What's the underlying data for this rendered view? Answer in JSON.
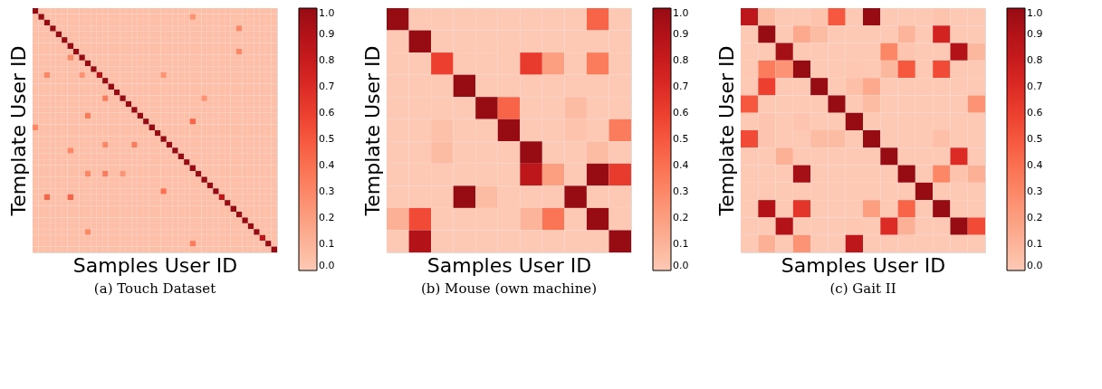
{
  "chart_data": [
    {
      "type": "heatmap",
      "title": "(a) Touch Dataset",
      "xlabel": "Samples User ID",
      "ylabel": "Template User ID",
      "tick_labels": false,
      "categories": [
        null,
        null,
        null,
        null,
        null,
        null,
        null,
        null,
        null,
        null,
        null,
        null,
        null,
        null,
        null,
        null,
        null,
        null,
        null,
        null,
        null,
        null,
        null,
        null,
        null,
        null,
        null,
        null,
        null,
        null,
        null,
        null,
        null,
        null,
        null,
        null,
        null,
        null,
        null,
        null,
        null,
        null
      ],
      "y_categories": [
        null,
        null,
        null,
        null,
        null,
        null,
        null,
        null,
        null,
        null,
        null,
        null,
        null,
        null,
        null,
        null,
        null,
        null,
        null,
        null,
        null,
        null,
        null,
        null,
        null,
        null,
        null,
        null,
        null,
        null,
        null,
        null,
        null,
        null,
        null,
        null,
        null,
        null,
        null,
        null,
        null,
        null
      ],
      "clim": [
        0,
        1
      ],
      "cticks": [
        {
          "value": 0,
          "label": "0.0"
        },
        {
          "value": 0.1,
          "label": "0.1"
        },
        {
          "value": 0.2,
          "label": "0.2"
        },
        {
          "value": 0.3,
          "label": "0.3"
        },
        {
          "value": 0.4,
          "label": "0.4"
        },
        {
          "value": 0.5,
          "label": "0.5"
        },
        {
          "value": 0.6,
          "label": "0.6"
        },
        {
          "value": 0.7,
          "label": "0.7"
        },
        {
          "value": 0.8,
          "label": "0.8"
        },
        {
          "value": 0.9,
          "label": "0.9"
        },
        {
          "value": 1,
          "label": "1.0"
        }
      ],
      "cells": [
        [
          1,
          0.05,
          0.05,
          0.05,
          0.05,
          0.05,
          0.05,
          0.05,
          0.05,
          0.05,
          0.05,
          0.05,
          0.05,
          0.05,
          0.05,
          0.05,
          0.05,
          0.05,
          0.05,
          0.05,
          0.05,
          0.05,
          0.05,
          0.05,
          0.05,
          0.05,
          0.05,
          0.05,
          0.05,
          0.05,
          0.05,
          0.05,
          0.05,
          0.05,
          0.05,
          0.05,
          0.05,
          0.05,
          0.05,
          0.05,
          0.05,
          0.05
        ],
        [
          0.05,
          1,
          0.05,
          0.05,
          0.05,
          0.05,
          0.05,
          0.05,
          0.05,
          0.05,
          0.05,
          0.05,
          0.05,
          0.05,
          0.05,
          0.05,
          0.05,
          0.05,
          0.05,
          0.05,
          0.05,
          0.05,
          0.05,
          0.05,
          0.05,
          0.05,
          0.05,
          0.25,
          0.05,
          0.05,
          0.05,
          0.05,
          0.05,
          0.05,
          0.05,
          0.05,
          0.05,
          0.05,
          0.05,
          0.05,
          0.05,
          0.05
        ],
        [
          0.05,
          0.05,
          1,
          0.05,
          0.05,
          0.05,
          0.05,
          0.05,
          0.05,
          0.05,
          0.05,
          0.05,
          0.05,
          0.05,
          0.05,
          0.05,
          0.05,
          0.05,
          0.05,
          0.05,
          0.05,
          0.05,
          0.05,
          0.05,
          0.05,
          0.05,
          0.05,
          0.05,
          0.05,
          0.05,
          0.05,
          0.05,
          0.05,
          0.05,
          0.05,
          0.05,
          0.05,
          0.05,
          0.05,
          0.05,
          0.05,
          0.05
        ],
        [
          0.05,
          0.05,
          0.05,
          1,
          0.05,
          0.05,
          0.05,
          0.05,
          0.05,
          0.05,
          0.05,
          0.05,
          0.05,
          0.05,
          0.05,
          0.05,
          0.05,
          0.05,
          0.05,
          0.05,
          0.05,
          0.05,
          0.05,
          0.05,
          0.05,
          0.05,
          0.05,
          0.05,
          0.05,
          0.05,
          0.05,
          0.05,
          0.05,
          0.05,
          0.05,
          0.3,
          0.05,
          0.05,
          0.05,
          0.05,
          0.05,
          0.05
        ],
        [
          0.05,
          0.05,
          0.05,
          0.05,
          1,
          0.05,
          0.05,
          0.05,
          0.05,
          0.05,
          0.05,
          0.05,
          0.05,
          0.05,
          0.05,
          0.05,
          0.05,
          0.05,
          0.05,
          0.05,
          0.05,
          0.05,
          0.05,
          0.05,
          0.05,
          0.05,
          0.05,
          0.05,
          0.05,
          0.05,
          0.05,
          0.05,
          0.05,
          0.05,
          0.05,
          0.05,
          0.05,
          0.05,
          0.05,
          0.05,
          0.05,
          0.05
        ],
        [
          0.05,
          0.05,
          0.05,
          0.05,
          0.05,
          1,
          0.05,
          0.05,
          0.05,
          0.05,
          0.05,
          0.05,
          0.05,
          0.05,
          0.05,
          0.05,
          0.05,
          0.05,
          0.05,
          0.05,
          0.05,
          0.05,
          0.05,
          0.05,
          0.05,
          0.05,
          0.05,
          0.05,
          0.05,
          0.05,
          0.05,
          0.05,
          0.05,
          0.05,
          0.05,
          0.05,
          0.05,
          0.05,
          0.05,
          0.05,
          0.05,
          0.05
        ],
        [
          0.05,
          0.05,
          0.05,
          0.05,
          0.05,
          0.05,
          1,
          0.05,
          0.05,
          0.05,
          0.05,
          0.05,
          0.05,
          0.05,
          0.05,
          0.05,
          0.05,
          0.05,
          0.05,
          0.05,
          0.05,
          0.05,
          0.05,
          0.05,
          0.05,
          0.05,
          0.05,
          0.05,
          0.05,
          0.05,
          0.05,
          0.05,
          0.05,
          0.05,
          0.05,
          0.05,
          0.05,
          0.05,
          0.05,
          0.05,
          0.05,
          0.05
        ],
        [
          0.05,
          0.05,
          0.05,
          0.05,
          0.05,
          0.05,
          0.05,
          1,
          0.05,
          0.05,
          0.05,
          0.05,
          0.05,
          0.05,
          0.05,
          0.05,
          0.05,
          0.05,
          0.05,
          0.05,
          0.05,
          0.05,
          0.05,
          0.05,
          0.05,
          0.05,
          0.05,
          0.05,
          0.05,
          0.05,
          0.05,
          0.05,
          0.05,
          0.05,
          0.05,
          0.3,
          0.05,
          0.05,
          0.05,
          0.05,
          0.05,
          0.05
        ],
        [
          0.05,
          0.05,
          0.05,
          0.05,
          0.05,
          0.05,
          0.3,
          0.05,
          1,
          0.05,
          0.05,
          0.05,
          0.05,
          0.05,
          0.05,
          0.05,
          0.05,
          0.05,
          0.05,
          0.05,
          0.05,
          0.05,
          0.05,
          0.05,
          0.05,
          0.05,
          0.05,
          0.05,
          0.05,
          0.05,
          0.05,
          0.05,
          0.05,
          0.05,
          0.05,
          0.05,
          0.05,
          0.05,
          0.05,
          0.05,
          0.05,
          0.05
        ],
        [
          0.05,
          0.05,
          0.05,
          0.05,
          0.05,
          0.05,
          0.05,
          0.05,
          0.05,
          1,
          0.05,
          0.05,
          0.05,
          0.05,
          0.05,
          0.05,
          0.05,
          0.05,
          0.05,
          0.05,
          0.05,
          0.05,
          0.05,
          0.05,
          0.05,
          0.05,
          0.05,
          0.05,
          0.05,
          0.05,
          0.05,
          0.05,
          0.05,
          0.05,
          0.05,
          0.05,
          0.05,
          0.05,
          0.05,
          0.05,
          0.05,
          0.05
        ],
        [
          0.05,
          0.05,
          0.05,
          0.05,
          0.05,
          0.05,
          0.05,
          0.05,
          0.05,
          0.05,
          1,
          0.05,
          0.05,
          0.05,
          0.05,
          0.05,
          0.05,
          0.05,
          0.05,
          0.05,
          0.05,
          0.05,
          0.05,
          0.05,
          0.05,
          0.05,
          0.05,
          0.05,
          0.05,
          0.05,
          0.05,
          0.05,
          0.05,
          0.05,
          0.05,
          0.05,
          0.05,
          0.05,
          0.05,
          0.05,
          0.05,
          0.05
        ],
        [
          0.05,
          0.05,
          0.3,
          0.05,
          0.05,
          0.05,
          0.05,
          0.05,
          0.25,
          0.05,
          0.05,
          0.9,
          0.05,
          0.05,
          0.05,
          0.05,
          0.05,
          0.05,
          0.05,
          0.05,
          0.05,
          0.05,
          0.25,
          0.05,
          0.05,
          0.05,
          0.05,
          0.05,
          0.05,
          0.05,
          0.05,
          0.05,
          0.05,
          0.05,
          0.05,
          0.05,
          0.05,
          0.05,
          0.05,
          0.05,
          0.05,
          0.05
        ],
        [
          0.05,
          0.05,
          0.05,
          0.05,
          0.05,
          0.05,
          0.05,
          0.05,
          0.05,
          0.05,
          0.05,
          0.05,
          1,
          0.05,
          0.05,
          0.05,
          0.05,
          0.05,
          0.05,
          0.05,
          0.05,
          0.05,
          0.05,
          0.05,
          0.05,
          0.05,
          0.05,
          0.05,
          0.05,
          0.05,
          0.05,
          0.05,
          0.05,
          0.05,
          0.05,
          0.05,
          0.05,
          0.05,
          0.05,
          0.05,
          0.05,
          0.05
        ],
        [
          0.05,
          0.05,
          0.05,
          0.05,
          0.05,
          0.05,
          0.05,
          0.05,
          0.05,
          0.05,
          0.05,
          0.05,
          0.05,
          1,
          0.05,
          0.05,
          0.05,
          0.05,
          0.05,
          0.05,
          0.05,
          0.05,
          0.05,
          0.05,
          0.05,
          0.05,
          0.05,
          0.05,
          0.05,
          0.05,
          0.05,
          0.05,
          0.05,
          0.05,
          0.05,
          0.05,
          0.05,
          0.05,
          0.05,
          0.05,
          0.05,
          0.05
        ],
        [
          0.05,
          0.05,
          0.05,
          0.05,
          0.05,
          0.05,
          0.05,
          0.05,
          0.05,
          0.05,
          0.05,
          0.05,
          0.05,
          0.05,
          1,
          0.05,
          0.05,
          0.05,
          0.05,
          0.05,
          0.05,
          0.05,
          0.05,
          0.05,
          0.05,
          0.05,
          0.05,
          0.05,
          0.05,
          0.05,
          0.05,
          0.05,
          0.05,
          0.05,
          0.05,
          0.05,
          0.05,
          0.05,
          0.05,
          0.05,
          0.05,
          0.05
        ],
        [
          0.05,
          0.05,
          0.05,
          0.05,
          0.05,
          0.05,
          0.05,
          0.05,
          0.05,
          0.05,
          0.05,
          0.05,
          0.35,
          0.05,
          0.05,
          1,
          0.05,
          0.05,
          0.05,
          0.05,
          0.05,
          0.05,
          0.05,
          0.05,
          0.05,
          0.05,
          0.05,
          0.05,
          0.05,
          0.25,
          0.05,
          0.05,
          0.05,
          0.05,
          0.05,
          0.05,
          0.05,
          0.05,
          0.05,
          0.05,
          0.05,
          0.05
        ],
        [
          0.05,
          0.05,
          0.05,
          0.05,
          0.05,
          0.05,
          0.05,
          0.05,
          0.05,
          0.05,
          0.05,
          0.05,
          0.05,
          0.05,
          0.05,
          0.05,
          1,
          0.05,
          0.05,
          0.05,
          0.05,
          0.05,
          0.05,
          0.05,
          0.05,
          0.05,
          0.05,
          0.05,
          0.05,
          0.05,
          0.05,
          0.05,
          0.05,
          0.05,
          0.05,
          0.05,
          0.05,
          0.05,
          0.05,
          0.05,
          0.05,
          0.05
        ],
        [
          0.05,
          0.05,
          0.05,
          0.05,
          0.05,
          0.05,
          0.05,
          0.05,
          0.05,
          0.05,
          0.05,
          0.05,
          0.05,
          0.05,
          0.05,
          0.05,
          0.05,
          1,
          0.05,
          0.05,
          0.05,
          0.05,
          0.05,
          0.05,
          0.05,
          0.05,
          0.05,
          0.05,
          0.05,
          0.05,
          0.05,
          0.05,
          0.05,
          0.05,
          0.05,
          0.05,
          0.05,
          0.05,
          0.05,
          0.05,
          0.05,
          0.05
        ],
        [
          0.05,
          0.05,
          0.05,
          0.05,
          0.05,
          0.05,
          0.05,
          0.05,
          0.05,
          0.35,
          0.05,
          0.05,
          0.05,
          0.05,
          0.05,
          0.05,
          0.05,
          0.05,
          1,
          0.05,
          0.05,
          0.05,
          0.05,
          0.05,
          0.05,
          0.05,
          0.05,
          0.05,
          0.05,
          0.05,
          0.05,
          0.05,
          0.05,
          0.05,
          0.05,
          0.05,
          0.05,
          0.05,
          0.05,
          0.05,
          0.05,
          0.05
        ],
        [
          0.05,
          0.05,
          0.05,
          0.05,
          0.05,
          0.05,
          0.05,
          0.05,
          0.05,
          0.05,
          0.05,
          0.05,
          0.05,
          0.05,
          0.05,
          0.05,
          0.05,
          0.05,
          0.05,
          1,
          0.05,
          0.05,
          0.05,
          0.05,
          0.05,
          0.05,
          0.05,
          0.45,
          0.05,
          0.05,
          0.05,
          0.05,
          0.05,
          0.05,
          0.05,
          0.05,
          0.05,
          0.05,
          0.05,
          0.05,
          0.05,
          0.05
        ],
        [
          0.3,
          0.05,
          0.05,
          0.05,
          0.05,
          0.05,
          0.05,
          0.05,
          0.05,
          0.05,
          0.05,
          0.05,
          0.05,
          0.05,
          0.05,
          0.05,
          0.05,
          0.05,
          0.05,
          0.05,
          1,
          0.05,
          0.05,
          0.05,
          0.05,
          0.05,
          0.05,
          0.05,
          0.05,
          0.05,
          0.05,
          0.05,
          0.05,
          0.05,
          0.05,
          0.05,
          0.05,
          0.05,
          0.05,
          0.05,
          0.05,
          0.05
        ],
        [
          0.05,
          0.05,
          0.05,
          0.05,
          0.05,
          0.05,
          0.05,
          0.05,
          0.05,
          0.05,
          0.05,
          0.05,
          0.05,
          0.05,
          0.05,
          0.05,
          0.05,
          0.05,
          0.05,
          0.05,
          0.05,
          1,
          0.05,
          0.05,
          0.05,
          0.05,
          0.05,
          0.05,
          0.05,
          0.05,
          0.05,
          0.05,
          0.05,
          0.05,
          0.05,
          0.05,
          0.05,
          0.05,
          0.05,
          0.05,
          0.05,
          0.05
        ],
        [
          0.05,
          0.05,
          0.05,
          0.05,
          0.05,
          0.05,
          0.05,
          0.05,
          0.05,
          0.05,
          0.05,
          0.05,
          0.05,
          0.05,
          0.05,
          0.05,
          0.05,
          0.05,
          0.05,
          0.05,
          0.05,
          0.05,
          1,
          0.05,
          0.05,
          0.05,
          0.05,
          0.05,
          0.05,
          0.05,
          0.05,
          0.05,
          0.05,
          0.05,
          0.05,
          0.05,
          0.05,
          0.05,
          0.05,
          0.05,
          0.05,
          0.05
        ],
        [
          0.05,
          0.05,
          0.05,
          0.05,
          0.05,
          0.05,
          0.05,
          0.05,
          0.05,
          0.05,
          0.05,
          0.05,
          0.3,
          0.05,
          0.05,
          0.05,
          0.05,
          0.35,
          0.05,
          0.05,
          0.05,
          0.05,
          0.05,
          1,
          0.05,
          0.05,
          0.05,
          0.05,
          0.05,
          0.05,
          0.05,
          0.05,
          0.05,
          0.05,
          0.05,
          0.05,
          0.05,
          0.05,
          0.05,
          0.05,
          0.05,
          0.05
        ],
        [
          0.05,
          0.05,
          0.05,
          0.05,
          0.05,
          0.05,
          0.3,
          0.05,
          0.05,
          0.05,
          0.05,
          0.05,
          0.05,
          0.05,
          0.05,
          0.05,
          0.05,
          0.05,
          0.05,
          0.05,
          0.05,
          0.05,
          0.05,
          0.05,
          1,
          0.05,
          0.05,
          0.05,
          0.05,
          0.05,
          0.05,
          0.05,
          0.05,
          0.05,
          0.05,
          0.05,
          0.05,
          0.05,
          0.05,
          0.05,
          0.05,
          0.05
        ],
        [
          0.05,
          0.05,
          0.05,
          0.05,
          0.05,
          0.05,
          0.05,
          0.05,
          0.05,
          0.05,
          0.05,
          0.05,
          0.05,
          0.05,
          0.05,
          0.05,
          0.05,
          0.05,
          0.05,
          0.05,
          0.05,
          0.05,
          0.05,
          0.05,
          0.05,
          1,
          0.05,
          0.05,
          0.05,
          0.05,
          0.05,
          0.05,
          0.05,
          0.05,
          0.05,
          0.05,
          0.05,
          0.05,
          0.05,
          0.05,
          0.05,
          0.05
        ],
        [
          0.05,
          0.05,
          0.05,
          0.05,
          0.05,
          0.05,
          0.05,
          0.05,
          0.05,
          0.05,
          0.05,
          0.05,
          0.05,
          0.05,
          0.05,
          0.05,
          0.05,
          0.05,
          0.05,
          0.05,
          0.05,
          0.05,
          0.05,
          0.05,
          0.05,
          0.05,
          1,
          0.05,
          0.05,
          0.05,
          0.05,
          0.05,
          0.05,
          0.05,
          0.05,
          0.05,
          0.05,
          0.05,
          0.05,
          0.05,
          0.05,
          0.05
        ],
        [
          0.05,
          0.05,
          0.05,
          0.05,
          0.05,
          0.05,
          0.05,
          0.05,
          0.05,
          0.05,
          0.05,
          0.05,
          0.05,
          0.05,
          0.05,
          0.05,
          0.05,
          0.05,
          0.05,
          0.05,
          0.05,
          0.05,
          0.05,
          0.05,
          0.05,
          0.05,
          0.05,
          1,
          0.05,
          0.05,
          0.05,
          0.05,
          0.05,
          0.05,
          0.05,
          0.05,
          0.05,
          0.05,
          0.05,
          0.05,
          0.05,
          0.05
        ],
        [
          0.05,
          0.05,
          0.05,
          0.05,
          0.05,
          0.05,
          0.05,
          0.05,
          0.05,
          0.3,
          0.05,
          0.05,
          0.35,
          0.05,
          0.05,
          0.25,
          0.05,
          0.05,
          0.05,
          0.05,
          0.05,
          0.05,
          0.05,
          0.05,
          0.05,
          0.05,
          0.05,
          0.05,
          1,
          0.05,
          0.05,
          0.05,
          0.05,
          0.05,
          0.05,
          0.05,
          0.05,
          0.05,
          0.05,
          0.05,
          0.05,
          0.05
        ],
        [
          0.05,
          0.05,
          0.05,
          0.05,
          0.05,
          0.05,
          0.05,
          0.05,
          0.05,
          0.05,
          0.05,
          0.05,
          0.05,
          0.05,
          0.05,
          0.05,
          0.05,
          0.05,
          0.05,
          0.05,
          0.05,
          0.05,
          0.05,
          0.05,
          0.05,
          0.05,
          0.05,
          0.05,
          0.05,
          1,
          0.05,
          0.05,
          0.05,
          0.05,
          0.05,
          0.05,
          0.05,
          0.05,
          0.05,
          0.05,
          0.05,
          0.05
        ],
        [
          0.05,
          0.05,
          0.05,
          0.05,
          0.05,
          0.05,
          0.05,
          0.05,
          0.05,
          0.05,
          0.05,
          0.05,
          0.05,
          0.05,
          0.05,
          0.05,
          0.05,
          0.05,
          0.05,
          0.05,
          0.05,
          0.05,
          0.05,
          0.05,
          0.05,
          0.05,
          0.05,
          0.05,
          0.05,
          0.05,
          1,
          0.05,
          0.05,
          0.05,
          0.05,
          0.05,
          0.05,
          0.05,
          0.05,
          0.05,
          0.05,
          0.05
        ],
        [
          0.05,
          0.05,
          0.05,
          0.05,
          0.05,
          0.05,
          0.05,
          0.05,
          0.05,
          0.05,
          0.05,
          0.05,
          0.05,
          0.05,
          0.05,
          0.05,
          0.05,
          0.05,
          0.05,
          0.05,
          0.05,
          0.05,
          0.4,
          0.05,
          0.05,
          0.05,
          0.05,
          0.05,
          0.05,
          0.05,
          0.05,
          1,
          0.05,
          0.05,
          0.05,
          0.05,
          0.05,
          0.05,
          0.05,
          0.05,
          0.05,
          0.05
        ],
        [
          0.05,
          0.05,
          0.45,
          0.05,
          0.05,
          0.05,
          0.45,
          0.05,
          0.05,
          0.05,
          0.05,
          0.05,
          0.05,
          0.05,
          0.05,
          0.05,
          0.05,
          0.05,
          0.05,
          0.05,
          0.05,
          0.05,
          0.05,
          0.05,
          0.05,
          0.05,
          0.05,
          0.05,
          0.05,
          0.05,
          0.05,
          0.05,
          0.85,
          0.05,
          0.05,
          0.05,
          0.05,
          0.05,
          0.05,
          0.05,
          0.05,
          0.05
        ],
        [
          0.05,
          0.05,
          0.05,
          0.05,
          0.05,
          0.05,
          0.05,
          0.05,
          0.05,
          0.05,
          0.05,
          0.05,
          0.05,
          0.05,
          0.05,
          0.05,
          0.05,
          0.05,
          0.05,
          0.05,
          0.05,
          0.05,
          0.05,
          0.05,
          0.05,
          0.05,
          0.05,
          0.05,
          0.05,
          0.05,
          0.05,
          0.05,
          0.05,
          1,
          0.05,
          0.05,
          0.05,
          0.05,
          0.05,
          0.05,
          0.05,
          0.05
        ],
        [
          0.05,
          0.05,
          0.05,
          0.05,
          0.05,
          0.05,
          0.05,
          0.05,
          0.05,
          0.05,
          0.05,
          0.05,
          0.05,
          0.05,
          0.05,
          0.05,
          0.05,
          0.05,
          0.05,
          0.05,
          0.05,
          0.05,
          0.05,
          0.05,
          0.05,
          0.05,
          0.05,
          0.05,
          0.05,
          0.05,
          0.05,
          0.05,
          0.05,
          0.05,
          1,
          0.05,
          0.05,
          0.05,
          0.05,
          0.05,
          0.05,
          0.05
        ],
        [
          0.05,
          0.05,
          0.05,
          0.05,
          0.05,
          0.05,
          0.05,
          0.05,
          0.05,
          0.05,
          0.05,
          0.05,
          0.05,
          0.05,
          0.05,
          0.05,
          0.05,
          0.05,
          0.05,
          0.05,
          0.05,
          0.05,
          0.05,
          0.05,
          0.05,
          0.05,
          0.05,
          0.05,
          0.05,
          0.05,
          0.05,
          0.05,
          0.05,
          0.05,
          0.05,
          1,
          0.05,
          0.05,
          0.05,
          0.05,
          0.05,
          0.05
        ],
        [
          0.05,
          0.05,
          0.05,
          0.05,
          0.05,
          0.05,
          0.05,
          0.05,
          0.05,
          0.05,
          0.05,
          0.05,
          0.05,
          0.05,
          0.05,
          0.05,
          0.05,
          0.05,
          0.05,
          0.05,
          0.05,
          0.05,
          0.05,
          0.05,
          0.05,
          0.05,
          0.05,
          0.05,
          0.05,
          0.05,
          0.05,
          0.05,
          0.05,
          0.05,
          0.05,
          0.05,
          1,
          0.05,
          0.05,
          0.05,
          0.05,
          0.05
        ],
        [
          0.05,
          0.05,
          0.05,
          0.05,
          0.05,
          0.05,
          0.05,
          0.05,
          0.05,
          0.05,
          0.05,
          0.05,
          0.05,
          0.05,
          0.05,
          0.05,
          0.05,
          0.05,
          0.05,
          0.05,
          0.05,
          0.05,
          0.05,
          0.05,
          0.05,
          0.05,
          0.05,
          0.05,
          0.05,
          0.05,
          0.05,
          0.05,
          0.05,
          0.05,
          0.05,
          0.05,
          0.05,
          1,
          0.05,
          0.05,
          0.05,
          0.05
        ],
        [
          0.05,
          0.05,
          0.05,
          0.05,
          0.05,
          0.05,
          0.05,
          0.05,
          0.05,
          0.3,
          0.05,
          0.05,
          0.05,
          0.05,
          0.05,
          0.05,
          0.05,
          0.05,
          0.05,
          0.05,
          0.05,
          0.05,
          0.05,
          0.05,
          0.05,
          0.05,
          0.05,
          0.05,
          0.05,
          0.05,
          0.05,
          0.05,
          0.05,
          0.05,
          0.05,
          0.05,
          0.05,
          0.05,
          1,
          0.05,
          0.05,
          0.05
        ],
        [
          0.05,
          0.05,
          0.05,
          0.05,
          0.05,
          0.05,
          0.05,
          0.05,
          0.05,
          0.05,
          0.05,
          0.05,
          0.05,
          0.05,
          0.05,
          0.05,
          0.05,
          0.05,
          0.05,
          0.05,
          0.05,
          0.05,
          0.05,
          0.05,
          0.05,
          0.05,
          0.05,
          0.05,
          0.05,
          0.05,
          0.05,
          0.05,
          0.05,
          0.05,
          0.05,
          0.05,
          0.05,
          0.05,
          0.05,
          0.85,
          0.05,
          0.05
        ],
        [
          0.05,
          0.05,
          0.05,
          0.05,
          0.05,
          0.05,
          0.05,
          0.05,
          0.05,
          0.05,
          0.05,
          0.05,
          0.05,
          0.05,
          0.05,
          0.05,
          0.05,
          0.05,
          0.05,
          0.05,
          0.05,
          0.05,
          0.05,
          0.05,
          0.05,
          0.05,
          0.05,
          0.35,
          0.05,
          0.05,
          0.05,
          0.05,
          0.05,
          0.05,
          0.05,
          0.05,
          0.05,
          0.05,
          0.05,
          0.05,
          1,
          0.05
        ],
        [
          0.05,
          0.05,
          0.05,
          0.05,
          0.05,
          0.05,
          0.05,
          0.05,
          0.05,
          0.05,
          0.05,
          0.05,
          0.05,
          0.05,
          0.05,
          0.05,
          0.05,
          0.05,
          0.05,
          0.05,
          0.05,
          0.05,
          0.05,
          0.05,
          0.05,
          0.05,
          0.05,
          0.05,
          0.05,
          0.05,
          0.05,
          0.05,
          0.05,
          0.05,
          0.05,
          0.05,
          0.05,
          0.05,
          0.05,
          0.05,
          0.05,
          1
        ]
      ]
    },
    {
      "type": "heatmap",
      "title": "(b) Mouse (own machine)",
      "xlabel": "Samples User ID",
      "ylabel": "Template User ID",
      "tick_labels": false,
      "categories": [
        null,
        null,
        null,
        null,
        null,
        null,
        null,
        null,
        null,
        null,
        null
      ],
      "y_categories": [
        null,
        null,
        null,
        null,
        null,
        null,
        null,
        null,
        null,
        null,
        null
      ],
      "clim": [
        0,
        1
      ],
      "cticks": [
        {
          "value": 0,
          "label": "0.0"
        },
        {
          "value": 0.1,
          "label": "0.1"
        },
        {
          "value": 0.2,
          "label": "0.2"
        },
        {
          "value": 0.3,
          "label": "0.3"
        },
        {
          "value": 0.4,
          "label": "0.4"
        },
        {
          "value": 0.5,
          "label": "0.5"
        },
        {
          "value": 0.6,
          "label": "0.6"
        },
        {
          "value": 0.7,
          "label": "0.7"
        },
        {
          "value": 0.8,
          "label": "0.8"
        },
        {
          "value": 0.9,
          "label": "0.9"
        },
        {
          "value": 1,
          "label": "1.0"
        }
      ],
      "cells": [
        [
          1,
          0,
          0,
          0,
          0,
          0,
          0,
          0,
          0,
          0.45,
          0
        ],
        [
          0,
          1,
          0,
          0,
          0,
          0,
          0,
          0,
          0,
          0,
          0
        ],
        [
          0,
          0,
          0.6,
          0,
          0,
          0,
          0.62,
          0.2,
          0,
          0.35,
          0
        ],
        [
          0,
          0,
          0,
          1,
          0,
          0,
          0,
          0,
          0,
          0,
          0
        ],
        [
          0,
          0,
          0,
          0,
          1,
          0.45,
          0,
          0,
          0.06,
          0,
          0
        ],
        [
          0,
          0,
          0.04,
          0,
          0,
          1,
          0,
          0,
          0.03,
          0,
          0.35
        ],
        [
          0,
          0,
          0.06,
          0,
          0,
          0,
          1,
          0,
          0,
          0.06,
          0
        ],
        [
          0,
          0,
          0,
          0,
          0,
          0,
          0.85,
          0.2,
          0,
          1,
          0.62
        ],
        [
          0,
          0,
          0,
          1,
          0.06,
          0,
          0,
          0,
          1,
          0,
          0
        ],
        [
          0.12,
          0.55,
          0,
          0,
          0,
          0,
          0.1,
          0.38,
          0,
          1,
          0
        ],
        [
          0,
          0.9,
          0,
          0,
          0,
          0,
          0,
          0,
          0,
          0,
          1
        ]
      ]
    },
    {
      "type": "heatmap",
      "title": "(c) Gait II",
      "xlabel": "Samples User ID",
      "ylabel": "Template User ID",
      "tick_labels": false,
      "categories": [
        null,
        null,
        null,
        null,
        null,
        null,
        null,
        null,
        null,
        null,
        null,
        null,
        null,
        null
      ],
      "y_categories": [
        null,
        null,
        null,
        null,
        null,
        null,
        null,
        null,
        null,
        null,
        null,
        null,
        null,
        null
      ],
      "clim": [
        0,
        1
      ],
      "cticks": [
        {
          "value": 0,
          "label": "0.0"
        },
        {
          "value": 0.1,
          "label": "0.1"
        },
        {
          "value": 0.2,
          "label": "0.2"
        },
        {
          "value": 0.3,
          "label": "0.3"
        },
        {
          "value": 0.4,
          "label": "0.4"
        },
        {
          "value": 0.5,
          "label": "0.5"
        },
        {
          "value": 0.6,
          "label": "0.6"
        },
        {
          "value": 0.7,
          "label": "0.7"
        },
        {
          "value": 0.8,
          "label": "0.8"
        },
        {
          "value": 0.9,
          "label": "0.9"
        },
        {
          "value": 1,
          "label": "1.0"
        }
      ],
      "cells": [
        [
          0.85,
          0.06,
          0,
          0,
          0.03,
          0.5,
          0,
          1,
          0,
          0,
          0,
          0.03,
          0,
          0
        ],
        [
          0,
          1,
          0,
          0.15,
          0.06,
          0,
          0,
          0,
          0,
          0.1,
          0,
          0.75,
          0,
          0
        ],
        [
          0,
          0,
          0.95,
          0,
          0,
          0,
          0,
          0,
          0.3,
          0.02,
          0,
          0,
          0.9,
          0.08
        ],
        [
          0,
          0.35,
          0.25,
          1,
          0,
          0,
          0.01,
          0,
          0.08,
          0.5,
          0,
          0.55,
          0,
          0
        ],
        [
          0,
          0.6,
          0,
          0,
          1,
          0,
          0.05,
          0.15,
          0,
          0,
          0,
          0,
          0,
          0
        ],
        [
          0.5,
          0,
          0,
          0,
          0,
          1,
          0,
          0.06,
          0,
          0,
          0,
          0,
          0,
          0.25
        ],
        [
          0,
          0.02,
          0,
          0.02,
          0,
          0,
          1,
          0,
          0,
          0,
          0,
          0,
          0,
          0
        ],
        [
          0.55,
          0.02,
          0,
          0,
          0.06,
          0.06,
          0,
          1,
          0,
          0,
          0,
          0.05,
          0,
          0
        ],
        [
          0,
          0,
          0.12,
          0,
          0,
          0,
          0,
          0,
          1,
          0,
          0,
          0,
          0.7,
          0
        ],
        [
          0,
          0,
          0,
          0.95,
          0,
          0,
          0,
          0,
          0,
          1,
          0,
          0.3,
          0.03,
          0.12
        ],
        [
          0,
          0,
          0,
          0,
          0,
          0,
          0,
          0,
          0,
          0,
          1,
          0,
          0,
          0
        ],
        [
          0,
          0.9,
          0,
          0.65,
          0,
          0,
          0,
          0.2,
          0,
          0.45,
          0,
          1,
          0,
          0
        ],
        [
          0,
          0,
          0.9,
          0,
          0,
          0,
          0.01,
          0,
          0.7,
          0.12,
          0,
          0,
          1,
          0.55
        ],
        [
          0,
          0.12,
          0,
          0.25,
          0,
          0,
          0.85,
          0,
          0,
          0,
          0,
          0,
          0,
          0
        ]
      ]
    }
  ]
}
